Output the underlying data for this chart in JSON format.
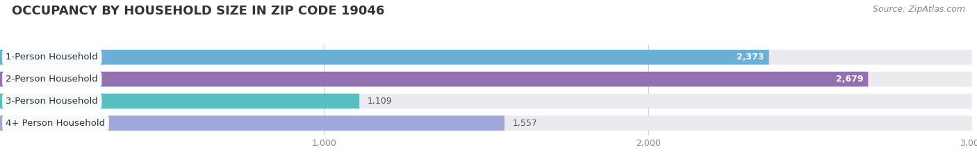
{
  "title": "OCCUPANCY BY HOUSEHOLD SIZE IN ZIP CODE 19046",
  "source": "Source: ZipAtlas.com",
  "categories": [
    "1-Person Household",
    "2-Person Household",
    "3-Person Household",
    "4+ Person Household"
  ],
  "values": [
    2373,
    2679,
    1109,
    1557
  ],
  "bar_colors": [
    "#6baed6",
    "#9370b0",
    "#56bfbf",
    "#9fa8d9"
  ],
  "label_colors": [
    "#ffffff",
    "#ffffff",
    "#666666",
    "#666666"
  ],
  "xlim_data": [
    0,
    3000
  ],
  "xticks": [
    1000,
    2000,
    3000
  ],
  "xtick_labels": [
    "1,000",
    "2,000",
    "3,000"
  ],
  "fig_bg_color": "#ffffff",
  "bar_bg_color": "#ebebef",
  "title_fontsize": 13,
  "source_fontsize": 9,
  "bar_label_fontsize": 9,
  "category_fontsize": 9.5,
  "tick_fontsize": 9
}
